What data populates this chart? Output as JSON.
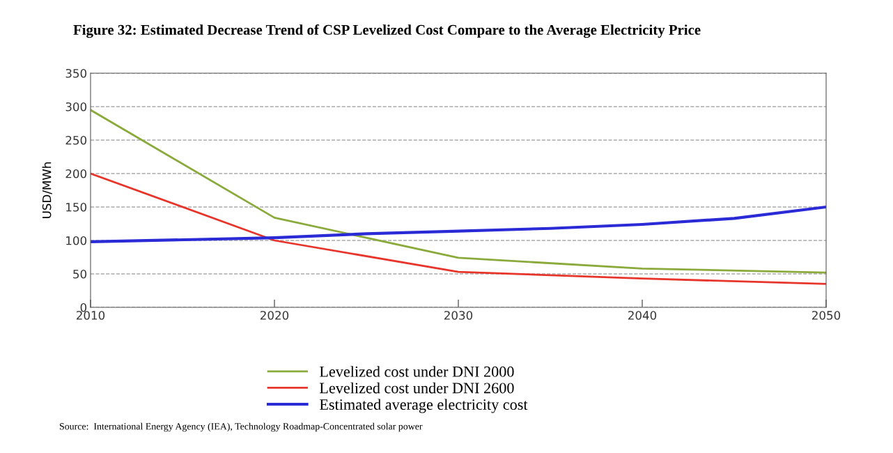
{
  "chart_data": {
    "type": "line",
    "title": "Figure 32: Estimated Decrease Trend of CSP Levelized Cost Compare to the Average Electricity Price",
    "ylabel": "USD/MWh",
    "series": [
      {
        "name": "Levelized cost under DNI 2000",
        "color": "#8aaa3c",
        "x": [
          2010,
          2020,
          2030,
          2040,
          2050
        ],
        "values": [
          295,
          134,
          74,
          58,
          52
        ]
      },
      {
        "name": "Levelized cost under DNI 2600",
        "color": "#e8352b",
        "x": [
          2010,
          2020,
          2030,
          2040,
          2050
        ],
        "values": [
          200,
          100,
          53,
          43,
          35
        ]
      },
      {
        "name": "Estimated average electricity cost",
        "color": "#2a2ad6",
        "x": [
          2010,
          2020,
          2025,
          2030,
          2035,
          2040,
          2045,
          2050
        ],
        "values": [
          98,
          104,
          110,
          114,
          118,
          124,
          133,
          150
        ]
      }
    ],
    "xlim": [
      2010,
      2050
    ],
    "xticks": [
      2010,
      2020,
      2030,
      2040,
      2050
    ],
    "ylim": [
      0,
      350
    ],
    "yticks": [
      0,
      50,
      100,
      150,
      200,
      250,
      300,
      350
    ],
    "grid": "y",
    "legend": "bottom",
    "marker": "none",
    "line_style": "solid",
    "annotations": [
      "Source:  International Energy Agency (IEA), Technology Roadmap-Concentrated solar power"
    ]
  }
}
